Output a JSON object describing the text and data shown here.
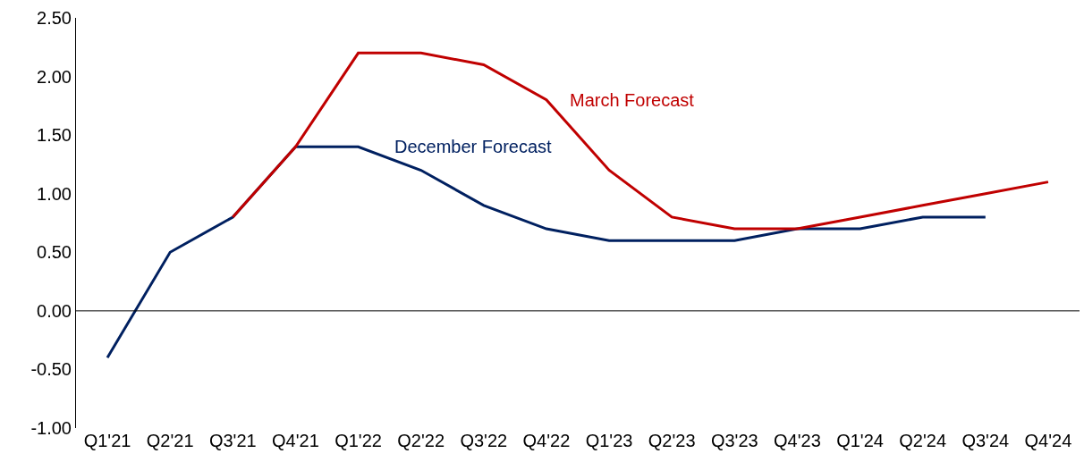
{
  "chart_data": {
    "type": "line",
    "categories": [
      "Q1'21",
      "Q2'21",
      "Q3'21",
      "Q4'21",
      "Q1'22",
      "Q2'22",
      "Q3'22",
      "Q4'22",
      "Q1'23",
      "Q2'23",
      "Q3'23",
      "Q4'23",
      "Q1'24",
      "Q2'24",
      "Q3'24",
      "Q4'24"
    ],
    "series": [
      {
        "name": "December Forecast",
        "color": "#002060",
        "values": [
          -0.4,
          0.5,
          0.8,
          1.4,
          1.4,
          1.2,
          0.9,
          0.7,
          0.6,
          0.6,
          0.6,
          0.7,
          0.7,
          0.8,
          0.8,
          null
        ]
      },
      {
        "name": "March Forecast",
        "color": "#c00000",
        "values": [
          null,
          null,
          0.8,
          1.4,
          2.2,
          2.2,
          2.1,
          1.8,
          1.2,
          0.8,
          0.7,
          0.7,
          0.8,
          0.9,
          1.0,
          1.1
        ]
      }
    ],
    "ylim": [
      -1.0,
      2.5
    ],
    "yticks": [
      {
        "value": -1.0,
        "label": "-1.00"
      },
      {
        "value": -0.5,
        "label": "-0.50"
      },
      {
        "value": 0.0,
        "label": "0.00"
      },
      {
        "value": 0.5,
        "label": "0.50"
      },
      {
        "value": 1.0,
        "label": "1.00"
      },
      {
        "value": 1.5,
        "label": "1.50"
      },
      {
        "value": 2.0,
        "label": "2.00"
      },
      {
        "value": 2.5,
        "label": "2.50"
      }
    ],
    "ref_lines": [
      {
        "axis": "y",
        "value": 0.0,
        "color": "#000000"
      }
    ],
    "legend": false,
    "marker": "none",
    "line_style": "solid"
  }
}
